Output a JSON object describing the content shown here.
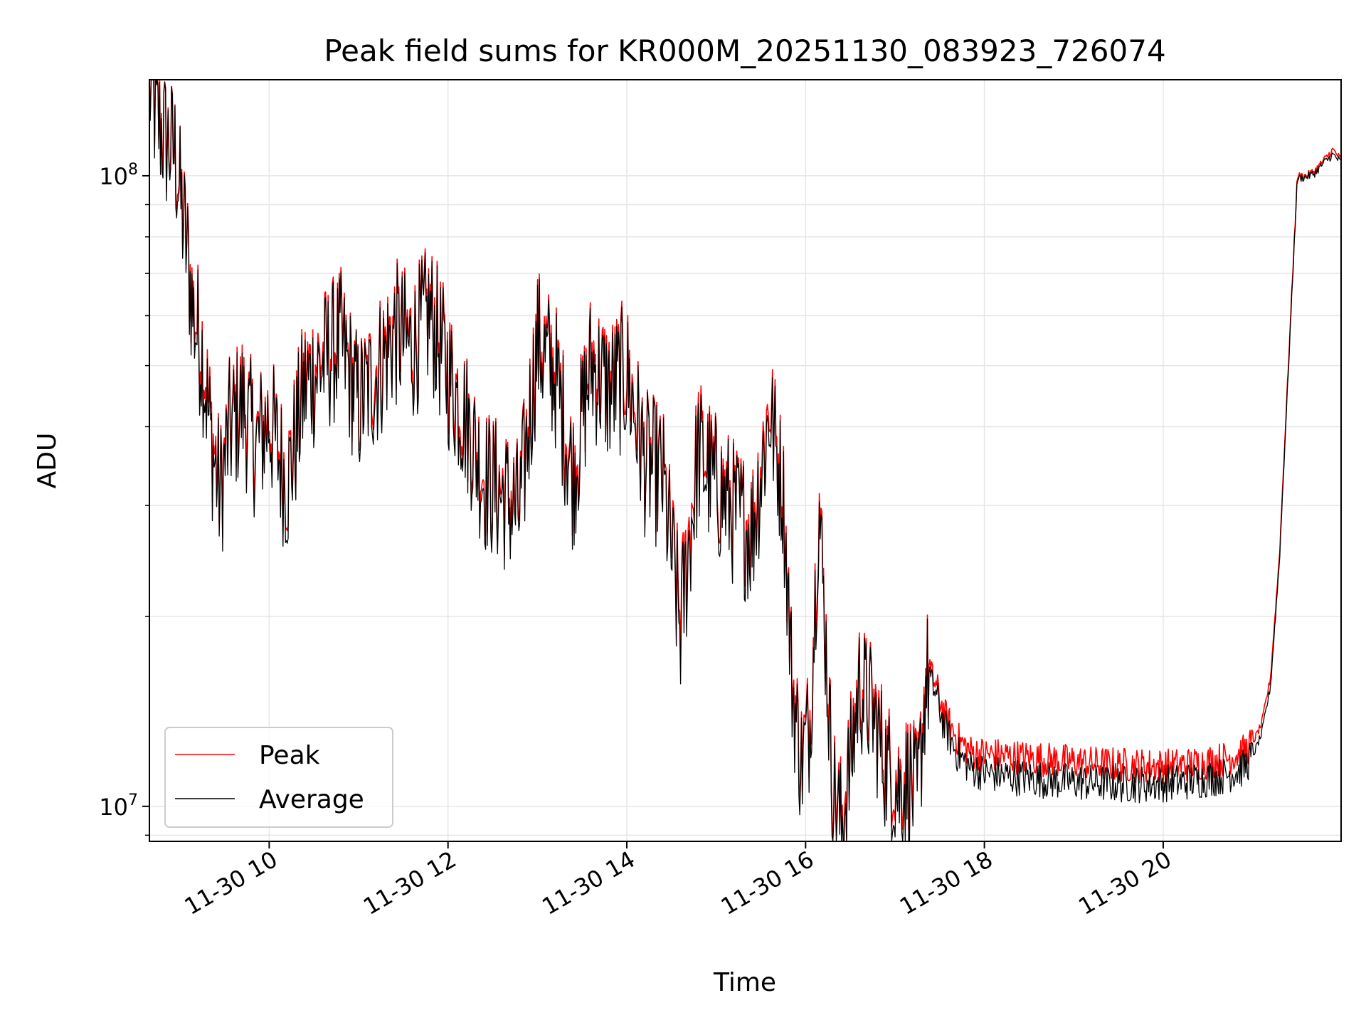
{
  "chart_data": {
    "type": "line",
    "title": "Peak field sums for KR000M_20251130_083923_726074",
    "xlabel": "Time",
    "ylabel": "ADU",
    "yscale": "log",
    "ylim": [
      8800000,
      142000000
    ],
    "xlim_hours": [
      8.66,
      21.99
    ],
    "grid": true,
    "legend_position": "lower-left",
    "x_ticks": [
      {
        "hour": 10,
        "label": "11-30 10"
      },
      {
        "hour": 12,
        "label": "11-30 12"
      },
      {
        "hour": 14,
        "label": "11-30 14"
      },
      {
        "hour": 16,
        "label": "11-30 16"
      },
      {
        "hour": 18,
        "label": "11-30 18"
      },
      {
        "hour": 20,
        "label": "11-30 20"
      }
    ],
    "y_ticks": [
      {
        "base": "10",
        "exp": "7",
        "value": 10000000
      },
      {
        "base": "10",
        "exp": "8",
        "value": 100000000
      }
    ],
    "x_hours": [
      8.66,
      8.75,
      8.85,
      8.95,
      9.0,
      9.08,
      9.15,
      9.25,
      9.35,
      9.45,
      9.55,
      9.7,
      9.85,
      10.0,
      10.2,
      10.4,
      10.6,
      10.8,
      11.0,
      11.2,
      11.4,
      11.6,
      11.8,
      12.0,
      12.2,
      12.4,
      12.6,
      12.8,
      13.0,
      13.2,
      13.4,
      13.6,
      13.8,
      14.0,
      14.2,
      14.4,
      14.6,
      14.8,
      15.0,
      15.2,
      15.4,
      15.6,
      15.75,
      15.85,
      15.95,
      16.05,
      16.15,
      16.3,
      16.4,
      16.5,
      16.6,
      16.75,
      16.9,
      17.05,
      17.15,
      17.25,
      17.35,
      17.45,
      17.55,
      17.7,
      17.85,
      18.0,
      18.3,
      18.6,
      18.9,
      19.2,
      19.5,
      19.8,
      20.1,
      20.4,
      20.7,
      20.9,
      21.0,
      21.1,
      21.2,
      21.3,
      21.4,
      21.5,
      21.6,
      21.7,
      21.8,
      21.9,
      21.99
    ],
    "series": [
      {
        "name": "Peak",
        "color": "#ff0000",
        "values": [
          140000000,
          125000000,
          115000000,
          110000000,
          95000000,
          78000000,
          62000000,
          54000000,
          40000000,
          32000000,
          40000000,
          45000000,
          38000000,
          42000000,
          33000000,
          48000000,
          52000000,
          56000000,
          44000000,
          50000000,
          58000000,
          55000000,
          62000000,
          50000000,
          42000000,
          34000000,
          32000000,
          30000000,
          56000000,
          50000000,
          34000000,
          52000000,
          47000000,
          50000000,
          36000000,
          34000000,
          20000000,
          38000000,
          33000000,
          30000000,
          28000000,
          44000000,
          32000000,
          16000000,
          12000000,
          14000000,
          31000000,
          11200000,
          9600000,
          12000000,
          16000000,
          14500000,
          12000000,
          11000000,
          11500000,
          10500000,
          16500000,
          15700000,
          14000000,
          12800000,
          12200000,
          12100000,
          12000000,
          11900000,
          11800000,
          11700000,
          11650000,
          11600000,
          11600000,
          11700000,
          11900000,
          12200000,
          12600000,
          13500000,
          16000000,
          25000000,
          50000000,
          100000000,
          100000000,
          102000000,
          106000000,
          110000000,
          106000000
        ]
      },
      {
        "name": "Average",
        "color": "#000000",
        "values": [
          138000000,
          122000000,
          113000000,
          108000000,
          93000000,
          76000000,
          60000000,
          52000000,
          38000000,
          31000000,
          39000000,
          43000000,
          37000000,
          41000000,
          32000000,
          46000000,
          50000000,
          54000000,
          43000000,
          48000000,
          56000000,
          53000000,
          60000000,
          48000000,
          41000000,
          33000000,
          31000000,
          29000000,
          54000000,
          48000000,
          33000000,
          50000000,
          45000000,
          48000000,
          35000000,
          33000000,
          19000000,
          36000000,
          32000000,
          29000000,
          27000000,
          42000000,
          31000000,
          15500000,
          11600000,
          13500000,
          30000000,
          10800000,
          9200000,
          11500000,
          15500000,
          14000000,
          11500000,
          10500000,
          11000000,
          10100000,
          16000000,
          15200000,
          13400000,
          12100000,
          11500000,
          11300000,
          11150000,
          11050000,
          10950000,
          10900000,
          10850000,
          10850000,
          10900000,
          11000000,
          11200000,
          11500000,
          12000000,
          13000000,
          15500000,
          24500000,
          49000000,
          99000000,
          99500000,
          101000000,
          105000000,
          108000000,
          105000000
        ]
      }
    ]
  }
}
